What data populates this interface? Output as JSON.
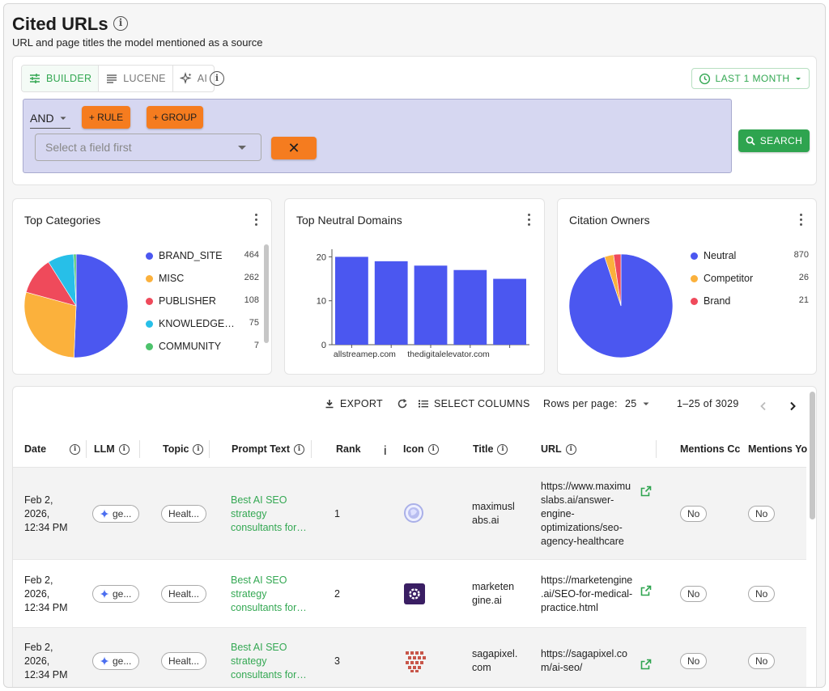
{
  "header": {
    "title": "Cited URLs",
    "subtitle": "URL and page titles the model mentioned as a source"
  },
  "query": {
    "modes": [
      "BUILDER",
      "LUCENE",
      "AI"
    ],
    "active_mode": "BUILDER",
    "time_range": "LAST 1 MONTH",
    "combinator": "AND",
    "rule_label": "+ RULE",
    "group_label": "+ GROUP",
    "field_placeholder": "Select a field first",
    "remove_symbol": "✕",
    "search_label": "SEARCH"
  },
  "charts": {
    "categories": {
      "title": "Top Categories",
      "items": [
        {
          "name": "BRAND_SITE",
          "value": "464",
          "color": "#4b57f0"
        },
        {
          "name": "MISC",
          "value": "262",
          "color": "#fbb13c"
        },
        {
          "name": "PUBLISHER",
          "value": "108",
          "color": "#ef4a5b"
        },
        {
          "name": "KNOWLEDGE…",
          "value": "75",
          "color": "#27bfe8"
        },
        {
          "name": "COMMUNITY",
          "value": "7",
          "color": "#4dc36c"
        }
      ]
    },
    "domains": {
      "title": "Top Neutral Domains"
    },
    "owners": {
      "title": "Citation Owners",
      "items": [
        {
          "name": "Neutral",
          "value": "870",
          "color": "#4b57f0"
        },
        {
          "name": "Competitor",
          "value": "26",
          "color": "#fbb13c"
        },
        {
          "name": "Brand",
          "value": "21",
          "color": "#ef4a5b"
        }
      ]
    }
  },
  "chart_data": [
    {
      "type": "pie",
      "title": "Top Categories",
      "labels": [
        "BRAND_SITE",
        "MISC",
        "PUBLISHER",
        "KNOWLEDGE…",
        "COMMUNITY"
      ],
      "values": [
        464,
        262,
        108,
        75,
        7
      ]
    },
    {
      "type": "bar",
      "title": "Top Neutral Domains",
      "categories": [
        "allstreamep.com",
        "",
        "thedigitalelevator.com",
        "",
        ""
      ],
      "values": [
        20,
        19,
        18,
        17,
        15
      ],
      "yticks": [
        "0",
        "10",
        "20"
      ],
      "ylim": [
        0,
        21
      ],
      "color": "#4b57f0"
    },
    {
      "type": "pie",
      "title": "Citation Owners",
      "labels": [
        "Neutral",
        "Competitor",
        "Brand"
      ],
      "values": [
        870,
        26,
        21
      ]
    }
  ],
  "table": {
    "toolbar": {
      "export": "EXPORT",
      "select_columns": "SELECT COLUMNS",
      "rows_per_page_label": "Rows per page:",
      "rows_per_page": "25",
      "range": "1–25 of 3029"
    },
    "columns": [
      "Date",
      "LLM",
      "Topic",
      "Prompt Text",
      "Rank",
      "Icon",
      "Title",
      "URL",
      "Mentions Cc",
      "Mentions Yo"
    ],
    "rows": [
      {
        "date": [
          "Feb 2,",
          "2026,",
          "12:34 PM"
        ],
        "llm": "ge...",
        "topic": "Healt...",
        "prompt": [
          "Best AI SEO",
          "strategy",
          "consultants for…"
        ],
        "rank": "1",
        "title": [
          "maximusl",
          "abs.ai"
        ],
        "url": [
          "https://www.maximu",
          "slabs.ai/answer-",
          "engine-",
          "optimizations/seo-",
          "agency-healthcare"
        ],
        "mentions_c": "No",
        "mentions_y": "No"
      },
      {
        "date": [
          "Feb 2,",
          "2026,",
          "12:34 PM"
        ],
        "llm": "ge...",
        "topic": "Healt...",
        "prompt": [
          "Best AI SEO",
          "strategy",
          "consultants for…"
        ],
        "rank": "2",
        "title": [
          "marketen",
          "gine.ai"
        ],
        "url": [
          "https://marketengine",
          ".ai/SEO-for-medical-",
          "practice.html"
        ],
        "mentions_c": "No",
        "mentions_y": "No"
      },
      {
        "date": [
          "Feb 2,",
          "2026,",
          "12:34 PM"
        ],
        "llm": "ge...",
        "topic": "Healt...",
        "prompt": [
          "Best AI SEO",
          "strategy",
          "consultants for…"
        ],
        "rank": "3",
        "title": [
          "sagapixel.",
          "com"
        ],
        "url": [
          "https://sagapixel.co",
          "m/ai-seo/"
        ],
        "mentions_c": "No",
        "mentions_y": "No"
      }
    ]
  }
}
